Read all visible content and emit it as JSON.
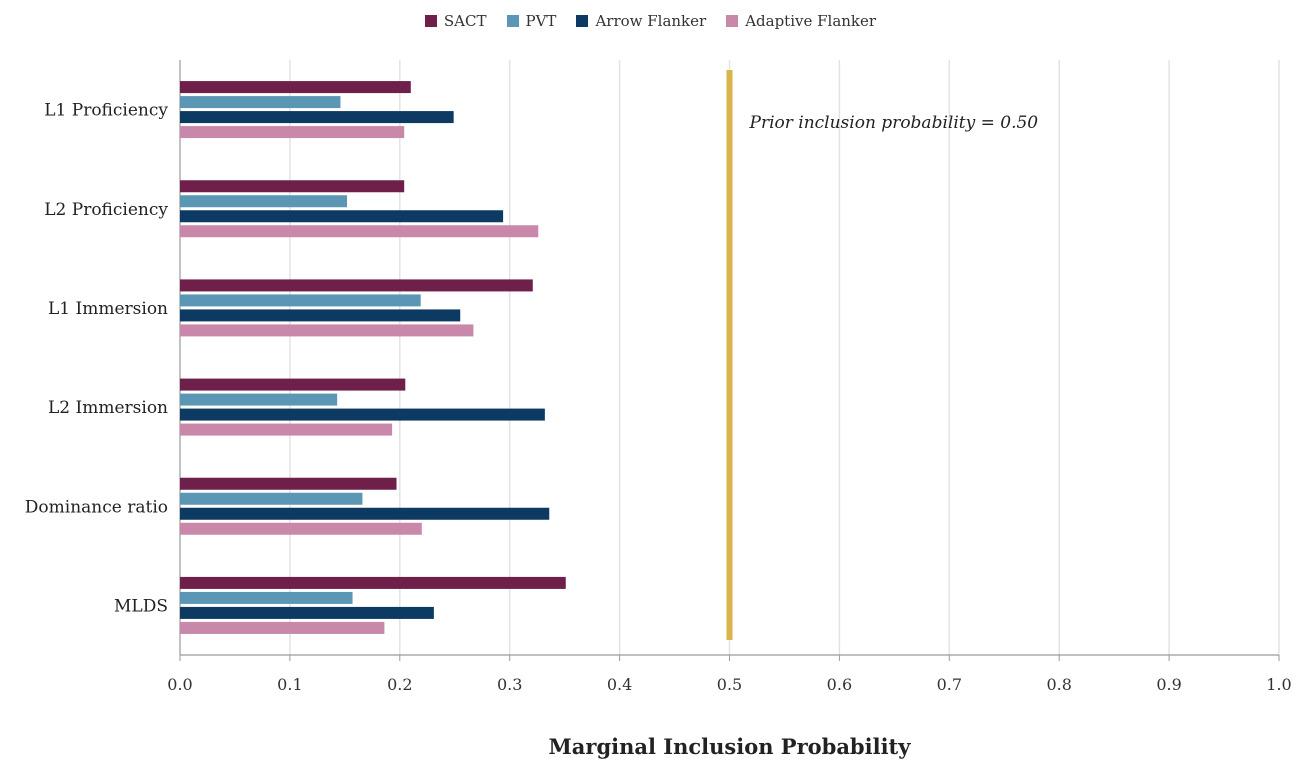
{
  "chart_data": {
    "type": "bar",
    "orientation": "horizontal",
    "categories": [
      "L1 Proficiency",
      "L2 Proficiency",
      "L1 Immersion",
      "L2 Immersion",
      "Dominance ratio",
      "MLDS"
    ],
    "series": [
      {
        "name": "SACT",
        "color": "#6e1f4a",
        "values": [
          0.21,
          0.204,
          0.321,
          0.205,
          0.197,
          0.351
        ]
      },
      {
        "name": "PVT",
        "color": "#5b97b5",
        "values": [
          0.146,
          0.152,
          0.219,
          0.143,
          0.166,
          0.157
        ]
      },
      {
        "name": "Arrow Flanker",
        "color": "#0d3a63",
        "values": [
          0.249,
          0.294,
          0.255,
          0.332,
          0.336,
          0.231
        ]
      },
      {
        "name": "Adaptive Flanker",
        "color": "#c987aa",
        "values": [
          0.204,
          0.326,
          0.267,
          0.193,
          0.22,
          0.186
        ]
      }
    ],
    "xlabel": "Marginal Inclusion Probability",
    "ylabel": "",
    "xlim": [
      0,
      1.0
    ],
    "xticks": [
      "0.0",
      "0.1",
      "0.2",
      "0.3",
      "0.4",
      "0.5",
      "0.6",
      "0.7",
      "0.8",
      "0.9",
      "1.0"
    ],
    "grid": "vertical",
    "legend_position": "top-center",
    "reference_line": {
      "x": 0.5,
      "color": "#d9b44a",
      "label": "Prior inclusion probability = 0.50"
    }
  }
}
